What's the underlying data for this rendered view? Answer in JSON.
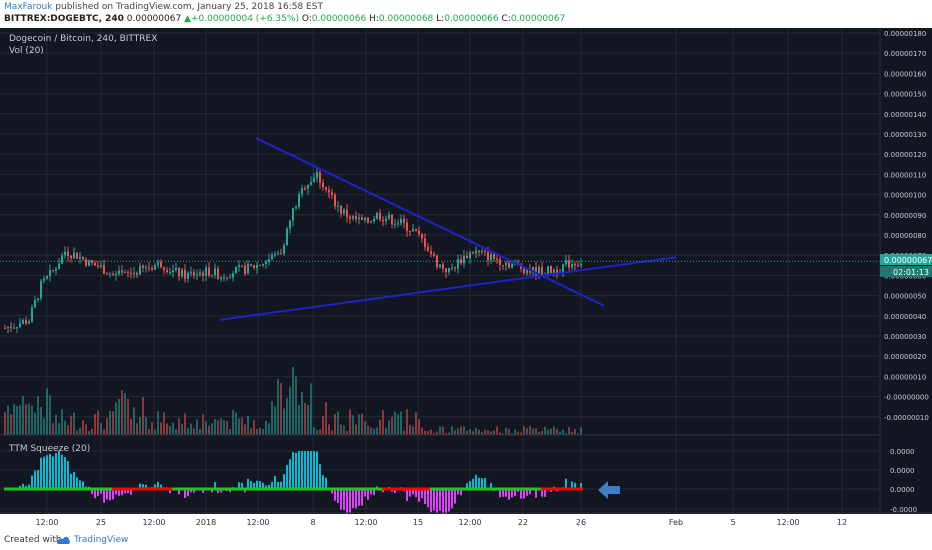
{
  "header": {
    "author": "MaxFarouk",
    "published": "published on TradingView.com, January 25, 2018 16:58 EST",
    "symbol": "BITTREX:DOGEBTC, 240",
    "last": "0.00000067",
    "change": "+0.00000004 (+6.35%)",
    "o_label": "O:",
    "o_val": "0.00000066",
    "h_label": "H:",
    "h_val": "0.00000068",
    "l_label": "L:",
    "l_val": "0.00000066",
    "c_label": "C:",
    "c_val": "0.00000067"
  },
  "footer": {
    "created_with": "Created with",
    "brand": "TradingView"
  },
  "colors": {
    "background": "#131722",
    "grid": "#242a36",
    "up": "#26a69a",
    "down": "#ef5350",
    "trendline": "#1f22c8",
    "price_tag": "#26a69a",
    "squeeze_pos": "#00bcd4",
    "squeeze_neg": "#e040fb",
    "squeeze_on": "#ff0000",
    "squeeze_off": "#21c521",
    "arrow": "#3d7ec4"
  },
  "chart_data": {
    "type": "candlestick",
    "title": "Dogecoin / Bitcoin, 240, BITTREX",
    "volume_label": "Vol (20)",
    "indicator_label": "TTM Squeeze (20)",
    "price_axis": {
      "ticks": [
        "0.00000180",
        "0.00000170",
        "0.00000160",
        "0.00000150",
        "0.00000140",
        "0.00000130",
        "0.00000120",
        "0.00000110",
        "0.00000100",
        "0.00000090",
        "0.00000080",
        "0.00000070",
        "0.00000060",
        "0.00000050",
        "0.00000040",
        "0.00000030",
        "0.00000020",
        "0.00000010",
        "-0.00000000",
        "-0.00000010"
      ],
      "range": [
        -1e-07,
        1.8e-06
      ],
      "current_price": "0.00000067",
      "countdown": "02:01:13"
    },
    "squeeze_axis": {
      "ticks": [
        "0.0000",
        "0.0000",
        "0.0000",
        "-0.0000"
      ]
    },
    "time_axis": {
      "ticks": [
        "12:00",
        "25",
        "12:00",
        "2018",
        "12:00",
        "8",
        "12:00",
        "15",
        "12:00",
        "22",
        "26",
        "Feb",
        "5",
        "12:00",
        "12"
      ]
    },
    "price_path": [
      [
        0,
        34
      ],
      [
        4,
        38
      ],
      [
        6,
        55
      ],
      [
        8,
        62
      ],
      [
        10,
        72
      ],
      [
        12,
        70
      ],
      [
        14,
        66
      ],
      [
        16,
        64
      ],
      [
        18,
        60
      ],
      [
        20,
        60
      ],
      [
        22,
        62
      ],
      [
        24,
        64
      ],
      [
        26,
        66
      ],
      [
        28,
        62
      ],
      [
        30,
        60
      ],
      [
        32,
        61
      ],
      [
        34,
        62
      ],
      [
        36,
        60
      ],
      [
        38,
        62
      ],
      [
        40,
        63
      ],
      [
        42,
        65
      ],
      [
        44,
        68
      ],
      [
        46,
        72
      ],
      [
        48,
        92
      ],
      [
        50,
        105
      ],
      [
        52,
        110
      ],
      [
        54,
        100
      ],
      [
        56,
        92
      ],
      [
        58,
        88
      ],
      [
        60,
        86
      ],
      [
        62,
        90
      ],
      [
        64,
        88
      ],
      [
        66,
        86
      ],
      [
        68,
        82
      ],
      [
        70,
        76
      ],
      [
        72,
        66
      ],
      [
        74,
        62
      ],
      [
        76,
        68
      ],
      [
        78,
        72
      ],
      [
        80,
        70
      ],
      [
        82,
        68
      ],
      [
        84,
        66
      ],
      [
        86,
        64
      ],
      [
        88,
        62
      ],
      [
        90,
        62
      ],
      [
        92,
        63
      ],
      [
        94,
        66
      ],
      [
        96,
        67
      ]
    ],
    "trendlines": {
      "descending": {
        "from": [
          42,
          1.28e-06
        ],
        "to": [
          100,
          4.5e-07
        ]
      },
      "ascending": {
        "from": [
          36,
          3.8e-07
        ],
        "to": [
          112,
          6.9e-07
        ]
      }
    }
  }
}
